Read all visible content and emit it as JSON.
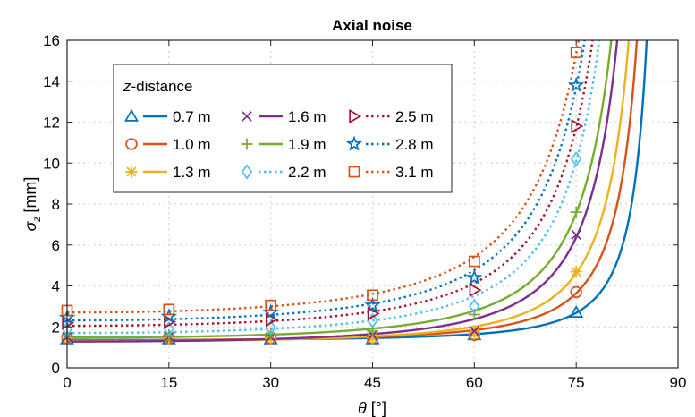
{
  "chart_data": {
    "type": "line",
    "title": "Axial noise",
    "xlabel_symbol": "θ",
    "xlabel_unit": "[°]",
    "ylabel_symbol": "σ",
    "ylabel_sub": "z",
    "ylabel_unit": "[mm]",
    "xlim": [
      0,
      90
    ],
    "ylim": [
      0,
      16
    ],
    "xticks": [
      0,
      15,
      30,
      45,
      60,
      75,
      90
    ],
    "yticks": [
      0,
      2,
      4,
      6,
      8,
      10,
      12,
      14,
      16
    ],
    "grid": true,
    "legend": {
      "title_italic": "z",
      "title_rest": "-distance",
      "placement": "upper-left",
      "columns": 3
    },
    "x": [
      0,
      15,
      30,
      45,
      60,
      75
    ],
    "series": [
      {
        "name": "0.7 m",
        "marker": "triangle",
        "linestyle": "solid",
        "color": "#0072BD",
        "values": [
          1.4,
          1.4,
          1.4,
          1.4,
          1.6,
          2.7
        ]
      },
      {
        "name": "1.0 m",
        "marker": "circle",
        "linestyle": "solid",
        "color": "#D95319",
        "values": [
          1.45,
          1.45,
          1.45,
          1.45,
          1.6,
          3.7
        ]
      },
      {
        "name": "1.3 m",
        "marker": "asterisk",
        "linestyle": "solid",
        "color": "#EDB120",
        "values": [
          1.45,
          1.45,
          1.45,
          1.45,
          1.65,
          4.7
        ]
      },
      {
        "name": "1.6 m",
        "marker": "x",
        "linestyle": "solid",
        "color": "#7E2F8E",
        "values": [
          1.5,
          1.5,
          1.5,
          1.6,
          1.8,
          6.5
        ]
      },
      {
        "name": "1.9 m",
        "marker": "plus",
        "linestyle": "solid",
        "color": "#77AC30",
        "values": [
          1.6,
          1.6,
          1.65,
          1.8,
          2.6,
          7.6
        ]
      },
      {
        "name": "2.2 m",
        "marker": "diamond",
        "linestyle": "dotted",
        "color": "#4DBEEE",
        "values": [
          1.9,
          1.9,
          1.95,
          2.3,
          3.0,
          10.2
        ]
      },
      {
        "name": "2.5 m",
        "marker": "tri-right",
        "linestyle": "dotted",
        "color": "#A2142F",
        "values": [
          2.2,
          2.25,
          2.35,
          2.65,
          3.8,
          11.8
        ]
      },
      {
        "name": "2.8 m",
        "marker": "star",
        "linestyle": "dotted",
        "color": "#0072BD",
        "values": [
          2.45,
          2.5,
          2.7,
          3.05,
          4.4,
          13.8
        ]
      },
      {
        "name": "3.1 m",
        "marker": "square",
        "linestyle": "dotted",
        "color": "#D95319",
        "values": [
          2.8,
          2.85,
          3.05,
          3.55,
          5.2,
          15.4
        ]
      }
    ]
  }
}
